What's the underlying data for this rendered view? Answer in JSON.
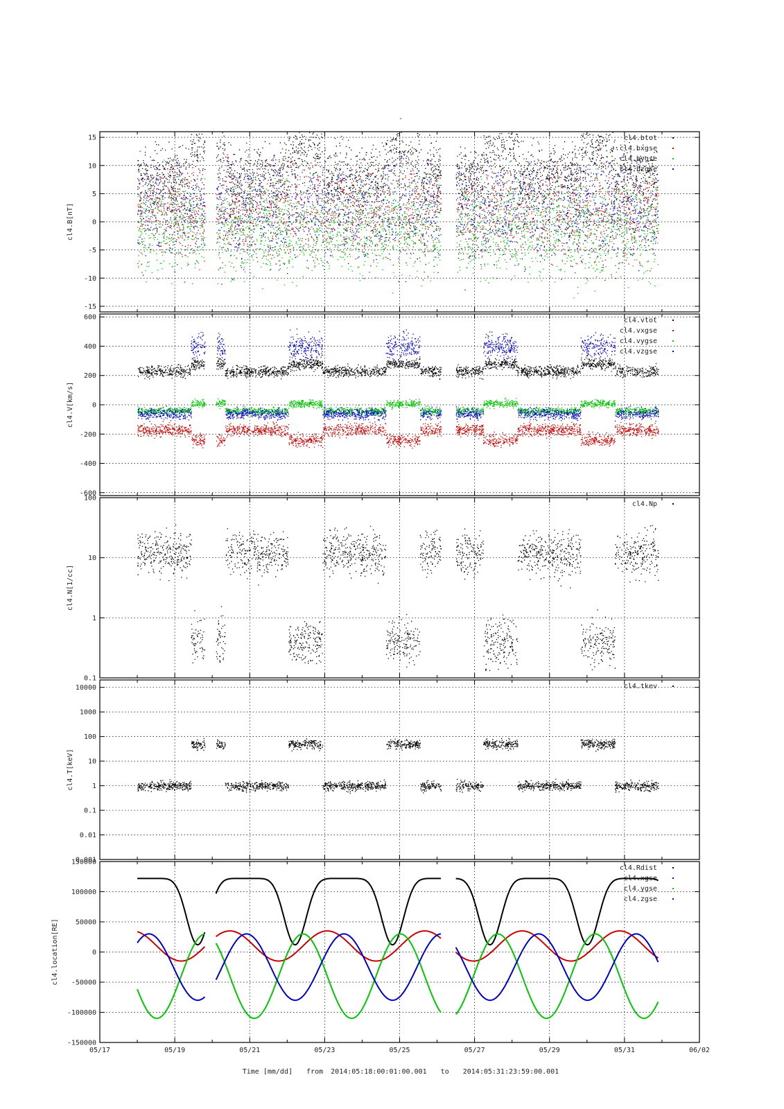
{
  "figure": {
    "title": "-",
    "xlabel_prefix": "Time [mm/dd]",
    "time_from_label": "from",
    "time_start": "2014:05:18:00:01:00.001",
    "time_to_label": "to",
    "time_end": "2014:05:31:23:59:00.001"
  },
  "colors": {
    "black": "#000000",
    "red": "#cc0000",
    "green": "#00c800",
    "blue": "#0000cc"
  },
  "chart_data": [
    {
      "type": "scatter",
      "ylabel": "cl4.B[nT]",
      "ylim": [
        -16,
        16
      ],
      "yscale": "linear",
      "yticks": [
        "15",
        "10",
        "5",
        "0",
        "-5",
        "-10",
        "-15"
      ],
      "ytick_values": [
        15,
        10,
        5,
        0,
        -5,
        -10,
        -15
      ],
      "xlim": [
        "05/17",
        "06/02"
      ],
      "xticks": [
        "05/17",
        "05/19",
        "05/21",
        "05/23",
        "05/25",
        "05/27",
        "05/29",
        "05/31",
        "06/02"
      ],
      "grid": true,
      "legend_placement": "top-right",
      "series": [
        {
          "name": "cl4.btot",
          "color": "#000000"
        },
        {
          "name": "cl4.bxgse",
          "color": "#cc0000"
        },
        {
          "name": "cl4.bygse",
          "color": "#00c800"
        },
        {
          "name": "cl4.bzgse",
          "color": "#0000cc"
        }
      ]
    },
    {
      "type": "scatter",
      "ylabel": "cl4.V[km/s]",
      "ylim": [
        -620,
        620
      ],
      "yscale": "linear",
      "yticks": [
        "600",
        "400",
        "200",
        "0",
        "-200",
        "-400",
        "-600"
      ],
      "ytick_values": [
        600,
        400,
        200,
        0,
        -200,
        -400,
        -600
      ],
      "grid": true,
      "legend_placement": "top-right",
      "series": [
        {
          "name": "cl4.vtot",
          "color": "#000000"
        },
        {
          "name": "cl4.vxgse",
          "color": "#cc0000"
        },
        {
          "name": "cl4.vygse",
          "color": "#00c800"
        },
        {
          "name": "cl4.vzgse",
          "color": "#0000cc"
        }
      ]
    },
    {
      "type": "scatter",
      "ylabel": "cl4.N[1/cc]",
      "ylim": [
        0.1,
        100
      ],
      "yscale": "log",
      "yticks": [
        "100",
        "10",
        "1",
        "0.1"
      ],
      "ytick_values": [
        100,
        10,
        1,
        0.1
      ],
      "grid": true,
      "legend_placement": "top-right",
      "series": [
        {
          "name": "cl4.Np",
          "color": "#000000"
        }
      ]
    },
    {
      "type": "scatter",
      "ylabel": "cl4.T[keV]",
      "ylim": [
        0.001,
        20000
      ],
      "yscale": "log",
      "yticks": [
        "10000",
        "1000",
        "100",
        "10",
        "1",
        "0.1",
        "0.01",
        "0.001"
      ],
      "ytick_values": [
        10000,
        1000,
        100,
        10,
        1,
        0.1,
        0.01,
        0.001
      ],
      "grid": true,
      "legend_placement": "top-right",
      "series": [
        {
          "name": "cl4.tkev",
          "color": "#000000"
        }
      ]
    },
    {
      "type": "line",
      "ylabel": "cl4.location[RE]",
      "ylim": [
        -150000,
        150000
      ],
      "yscale": "linear",
      "yticks": [
        "150000",
        "100000",
        "50000",
        "0",
        "-50000",
        "-100000",
        "-150000"
      ],
      "ytick_values": [
        150000,
        100000,
        50000,
        0,
        -50000,
        -100000,
        -150000
      ],
      "grid": true,
      "legend_placement": "top-right",
      "series": [
        {
          "name": "cl4.Rdist",
          "color": "#000000"
        },
        {
          "name": "cl4.xgse",
          "color": "#0000cc"
        },
        {
          "name": "cl4.ygse",
          "color": "#00c800"
        },
        {
          "name": "cl4.zgse",
          "color": "#0000cc"
        }
      ]
    }
  ]
}
